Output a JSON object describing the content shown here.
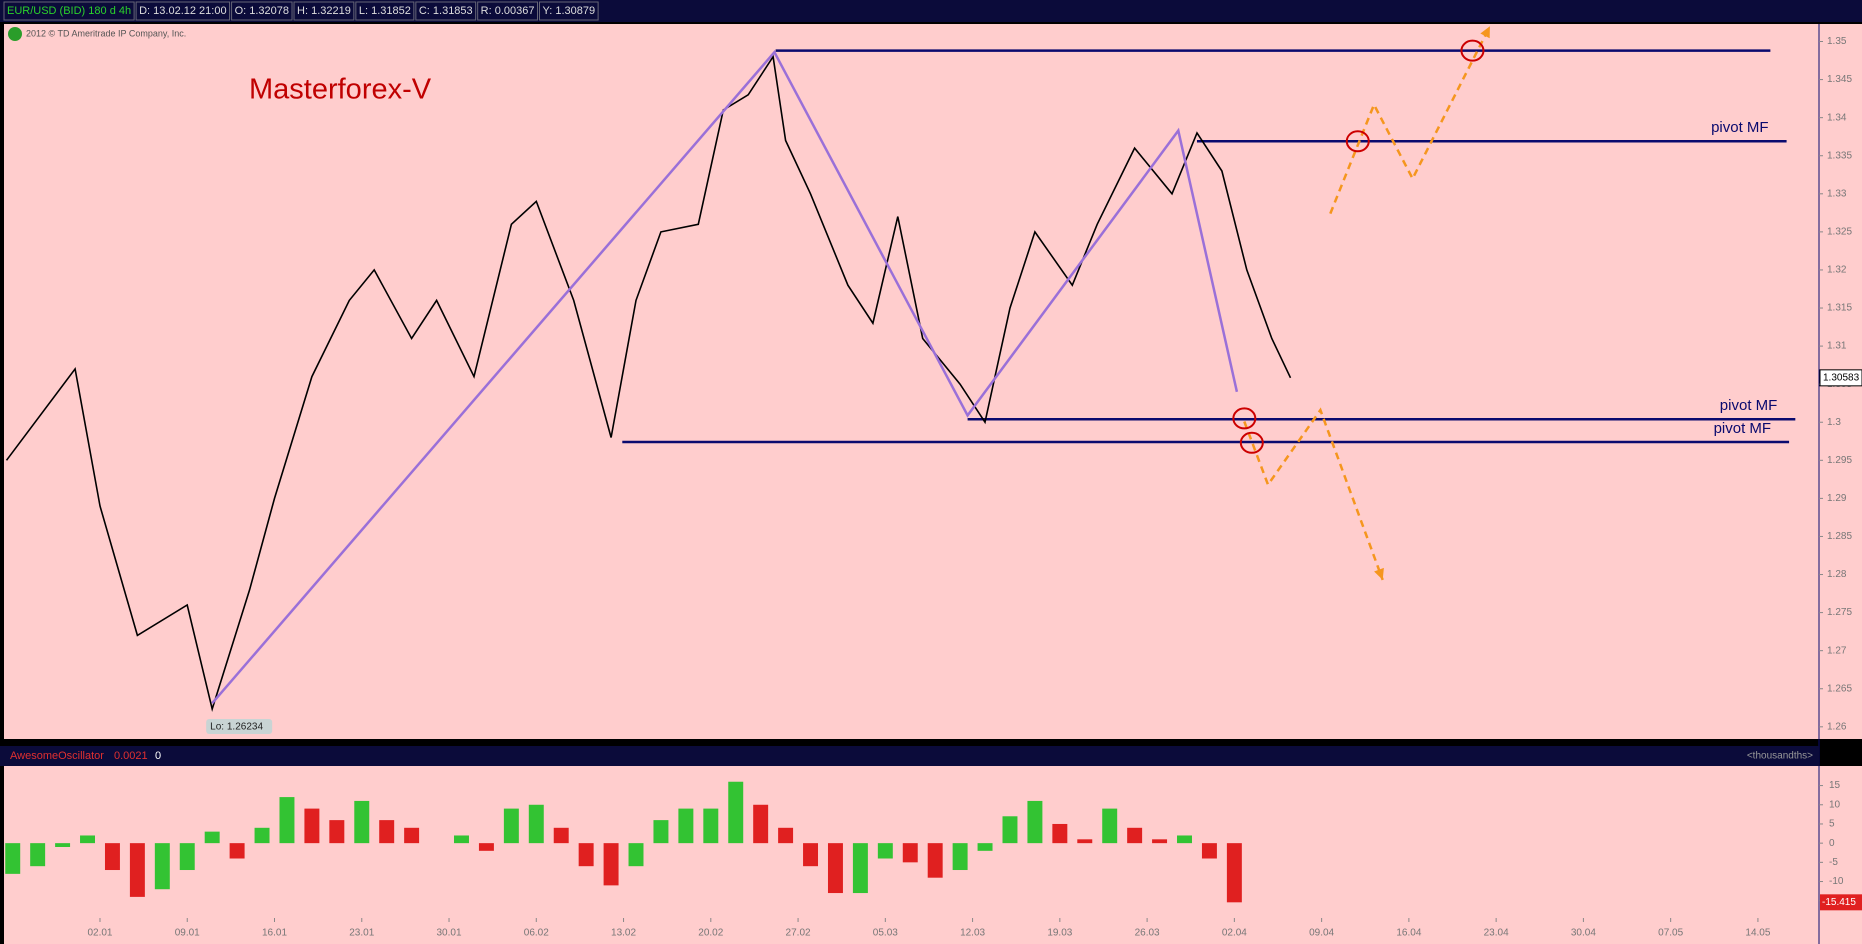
{
  "header": {
    "symbol": "EUR/USD (BID) 180 d 4h",
    "fields": [
      "D: 13.02.12 21:00",
      "O: 1.32078",
      "H: 1.32219",
      "L: 1.31852",
      "C: 1.31853",
      "R: 0.00367",
      "Y: 1.30879"
    ],
    "copyright": "2012 © TD Ameritrade IP Company, Inc."
  },
  "chart_data": [
    {
      "type": "line",
      "title": "Masterforex-V",
      "color": "#000000",
      "x": [
        -7.5,
        -2,
        0,
        3,
        7,
        9,
        12,
        14,
        17,
        20,
        22,
        25,
        27,
        30,
        33,
        35,
        38,
        41,
        43,
        45,
        48,
        50,
        52,
        54,
        55,
        57,
        60,
        62,
        64,
        66,
        69,
        71,
        73,
        75,
        78,
        80,
        83,
        86,
        88,
        90,
        92,
        94,
        95.5
      ],
      "values": [
        1.295,
        1.307,
        1.289,
        1.272,
        1.276,
        1.26234,
        1.278,
        1.29,
        1.306,
        1.316,
        1.32,
        1.311,
        1.316,
        1.306,
        1.326,
        1.329,
        1.316,
        1.298,
        1.316,
        1.325,
        1.326,
        1.341,
        1.343,
        1.348,
        1.337,
        1.33,
        1.318,
        1.313,
        1.327,
        1.311,
        1.305,
        1.3,
        1.315,
        1.325,
        1.318,
        1.326,
        1.336,
        1.33,
        1.338,
        1.333,
        1.32,
        1.311,
        1.30583
      ],
      "low_label": "Lo: 1.26234",
      "levels": [
        {
          "value": 1.3488,
          "from": 54.2,
          "to": 134
        },
        {
          "value": 1.3369,
          "from": 88,
          "to": 135.3,
          "label": "pivot MF"
        },
        {
          "value": 1.3004,
          "from": 69.6,
          "to": 136,
          "label": "pivot MF"
        },
        {
          "value": 1.2974,
          "from": 41.9,
          "to": 135.5,
          "label": "pivot MF"
        }
      ],
      "level_color": "#0a0a6e",
      "trend_line": {
        "x": [
          9,
          54.1,
          69.6,
          86.5,
          91.2
        ],
        "values": [
          1.2631,
          1.3486,
          1.3009,
          1.3383,
          1.304
        ],
        "color": "#9a70d8"
      },
      "projections": [
        {
          "x": [
            98.7,
            102.2,
            105.3,
            111.5
          ],
          "values": [
            1.3274,
            1.3417,
            1.332,
            1.352
          ]
        },
        {
          "x": [
            91.8,
            93.7,
            97.9,
            102.9
          ],
          "values": [
            1.3001,
            1.2918,
            1.3016,
            1.2793
          ]
        }
      ],
      "projection_color": "#f5961e",
      "markers": {
        "x": [
          100.9,
          110.1,
          91.8,
          92.4
        ],
        "values": [
          1.3369,
          1.3488,
          1.3005,
          1.2973
        ],
        "color": "#cc0000"
      },
      "xlim": [
        -7.7,
        137.9
      ],
      "ylim": [
        1.2584,
        1.3523
      ],
      "yticks": [
        1.26,
        1.265,
        1.27,
        1.275,
        1.28,
        1.285,
        1.29,
        1.295,
        1.3,
        1.305,
        1.31,
        1.315,
        1.32,
        1.325,
        1.33,
        1.335,
        1.34,
        1.345,
        1.35
      ]
    },
    {
      "type": "bar",
      "title": "AwesomeOscillator",
      "readouts": [
        "0.0021",
        "0"
      ],
      "unit_label": "<thousandths>",
      "colors": {
        "up": "#33c333",
        "down": "#e02020"
      },
      "x": [
        -7,
        -5,
        -3,
        -1,
        1,
        3,
        5,
        7,
        9,
        11,
        13,
        15,
        17,
        19,
        21,
        23,
        25,
        27,
        29,
        31,
        33,
        35,
        37,
        39,
        41,
        43,
        45,
        47,
        49,
        51,
        53,
        55,
        57,
        59,
        61,
        63,
        65,
        67,
        69,
        71,
        73,
        75,
        77,
        79,
        81,
        83,
        85,
        87,
        89,
        91
      ],
      "values": [
        -8,
        -6,
        -1,
        2,
        -7,
        -14,
        -12,
        -7,
        3,
        -4,
        4,
        12,
        9,
        6,
        11,
        6,
        4,
        0,
        2,
        -2,
        9,
        10,
        4,
        -6,
        -11,
        -6,
        6,
        9,
        9,
        16,
        10,
        4,
        -6,
        -13,
        -13,
        -4,
        -5,
        -9,
        -7,
        -2,
        7,
        11,
        5,
        1,
        9,
        4,
        1,
        2,
        -4,
        -15.415
      ],
      "xlim": [
        -7.7,
        137.9
      ],
      "ylim": [
        -19.5,
        20.1
      ],
      "yticks": [
        -15,
        -10,
        -5,
        0,
        5,
        10,
        15
      ],
      "xticks": [
        {
          "value": 0,
          "label": "02.01"
        },
        {
          "value": 7,
          "label": "09.01"
        },
        {
          "value": 14,
          "label": "16.01"
        },
        {
          "value": 21,
          "label": "23.01"
        },
        {
          "value": 28,
          "label": "30.01"
        },
        {
          "value": 35,
          "label": "06.02"
        },
        {
          "value": 42,
          "label": "13.02"
        },
        {
          "value": 49,
          "label": "20.02"
        },
        {
          "value": 56,
          "label": "27.02"
        },
        {
          "value": 63,
          "label": "05.03"
        },
        {
          "value": 70,
          "label": "12.03"
        },
        {
          "value": 77,
          "label": "19.03"
        },
        {
          "value": 84,
          "label": "26.03"
        },
        {
          "value": 91,
          "label": "02.04"
        },
        {
          "value": 98,
          "label": "09.04"
        },
        {
          "value": 105,
          "label": "16.04"
        },
        {
          "value": 112,
          "label": "23.04"
        },
        {
          "value": 119,
          "label": "30.04"
        },
        {
          "value": 126,
          "label": "07.05"
        },
        {
          "value": 133,
          "label": "14.05"
        }
      ]
    }
  ]
}
